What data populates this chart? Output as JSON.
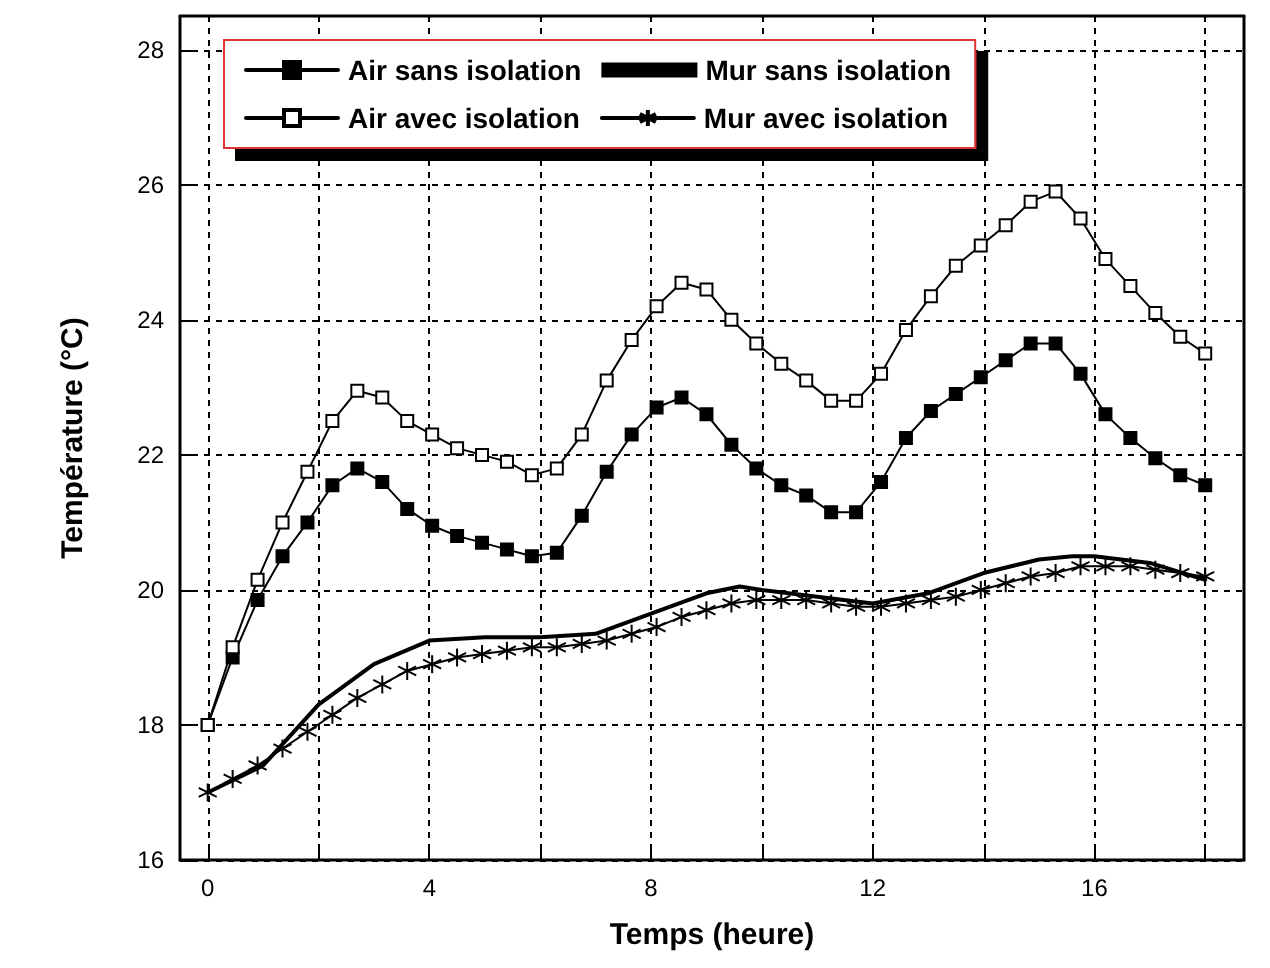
{
  "chart_data": {
    "type": "line",
    "xlabel": "Temps (heure)",
    "ylabel": "Température (°C)",
    "x": [
      0,
      0.45,
      0.9,
      1.35,
      1.8,
      2.25,
      2.7,
      3.15,
      3.6,
      4.05,
      4.5,
      4.95,
      5.4,
      5.85,
      6.3,
      6.75,
      7.2,
      7.65,
      8.1,
      8.55,
      9.0,
      9.45,
      9.9,
      10.35,
      10.8,
      11.25,
      11.7,
      12.15,
      12.6,
      13.05,
      13.5,
      13.95,
      14.4,
      14.85,
      15.3,
      15.75,
      16.2,
      16.65,
      17.1,
      17.55,
      18
    ],
    "series": [
      {
        "name": "Air sans isolation",
        "color": "#000000",
        "marker": "square",
        "values": [
          18.0,
          19.0,
          19.85,
          20.5,
          21.0,
          21.55,
          21.8,
          21.6,
          21.2,
          20.95,
          20.8,
          20.7,
          20.6,
          20.5,
          20.55,
          21.1,
          21.75,
          22.3,
          22.7,
          22.85,
          22.6,
          22.15,
          21.8,
          21.55,
          21.4,
          21.15,
          21.15,
          21.6,
          22.25,
          22.65,
          22.9,
          23.15,
          23.4,
          23.65,
          23.65,
          23.2,
          22.6,
          22.25,
          21.95,
          21.7,
          21.55
        ]
      },
      {
        "name": "Mur sans isolation",
        "color": "#000000",
        "marker": "none",
        "x": [
          0,
          1,
          2,
          3,
          4,
          5,
          6,
          7,
          8,
          9,
          9.6,
          10,
          11,
          12,
          13,
          14,
          15,
          15.6,
          16,
          17,
          18
        ],
        "values": [
          17.0,
          17.4,
          18.3,
          18.9,
          19.25,
          19.3,
          19.3,
          19.35,
          19.65,
          19.95,
          20.05,
          20.0,
          19.9,
          19.8,
          19.95,
          20.25,
          20.45,
          20.5,
          20.5,
          20.4,
          20.15
        ]
      },
      {
        "name": "Air avec isolation",
        "color": "#000000",
        "marker": "square",
        "values": [
          18.0,
          19.15,
          20.15,
          21.0,
          21.75,
          22.5,
          22.95,
          22.85,
          22.5,
          22.3,
          22.1,
          22.0,
          21.9,
          21.7,
          21.8,
          22.3,
          23.1,
          23.7,
          24.2,
          24.55,
          24.45,
          24.0,
          23.65,
          23.35,
          23.1,
          22.8,
          22.8,
          23.2,
          23.85,
          24.35,
          24.8,
          25.1,
          25.4,
          25.75,
          25.9,
          25.5,
          24.9,
          24.5,
          24.1,
          23.75,
          23.5
        ]
      },
      {
        "name": "Mur avec isolation",
        "color": "#000000",
        "marker": "cross",
        "values": [
          17.0,
          17.2,
          17.4,
          17.65,
          17.9,
          18.15,
          18.4,
          18.6,
          18.8,
          18.9,
          19.0,
          19.05,
          19.1,
          19.15,
          19.15,
          19.2,
          19.25,
          19.35,
          19.45,
          19.6,
          19.7,
          19.8,
          19.85,
          19.85,
          19.85,
          19.8,
          19.75,
          19.75,
          19.8,
          19.85,
          19.9,
          20.0,
          20.1,
          20.2,
          20.25,
          20.35,
          20.35,
          20.35,
          20.3,
          20.25,
          20.2
        ]
      }
    ],
    "xlim": [
      -0.5,
      18.7
    ],
    "ylim": [
      16,
      28.5
    ],
    "xticks": [
      0,
      {
        "value": 2,
        "label": null
      },
      4,
      {
        "value": 6,
        "label": null
      },
      8,
      {
        "value": 10,
        "label": null
      },
      12,
      {
        "value": 14,
        "label": null
      },
      16,
      {
        "value": 18,
        "label": null
      }
    ],
    "yticks": [
      16,
      18,
      20,
      22,
      24,
      26,
      28
    ],
    "grid": true,
    "legend": "top left"
  }
}
